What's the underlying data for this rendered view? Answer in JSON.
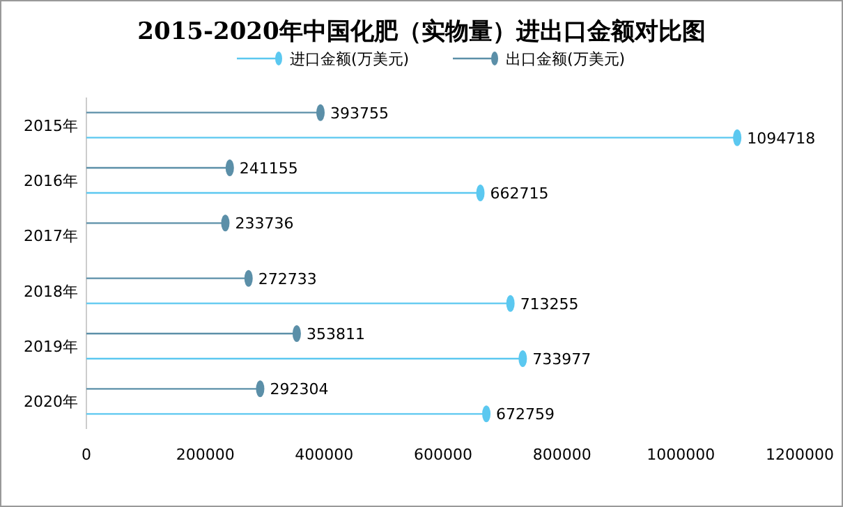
{
  "chart_data": {
    "type": "lollipop",
    "orientation": "horizontal",
    "title": "2015-2020年中国化肥（实物量）进出口金额对比图",
    "categories": [
      "2015年",
      "2016年",
      "2017年",
      "2018年",
      "2019年",
      "2020年"
    ],
    "series": [
      {
        "name": "进口金额(万美元)",
        "color": "#5bc8f0",
        "values": [
          1094718,
          662715,
          null,
          713255,
          733977,
          672759
        ],
        "value_labels": [
          "1094718",
          "662715",
          null,
          "713255",
          "733977",
          "672759"
        ]
      },
      {
        "name": "出口金额(万美元)",
        "color": "#5b8fa8",
        "values": [
          393755,
          241155,
          233736,
          272733,
          353811,
          292304
        ],
        "value_labels": [
          "393755",
          "241155",
          "233736",
          "272733",
          "353811",
          "292304"
        ]
      }
    ],
    "xlim": [
      0,
      1200000
    ],
    "xticks": [
      0,
      200000,
      400000,
      600000,
      800000,
      1000000,
      1200000
    ],
    "legend": "top",
    "marker": "circle",
    "grid": false
  }
}
